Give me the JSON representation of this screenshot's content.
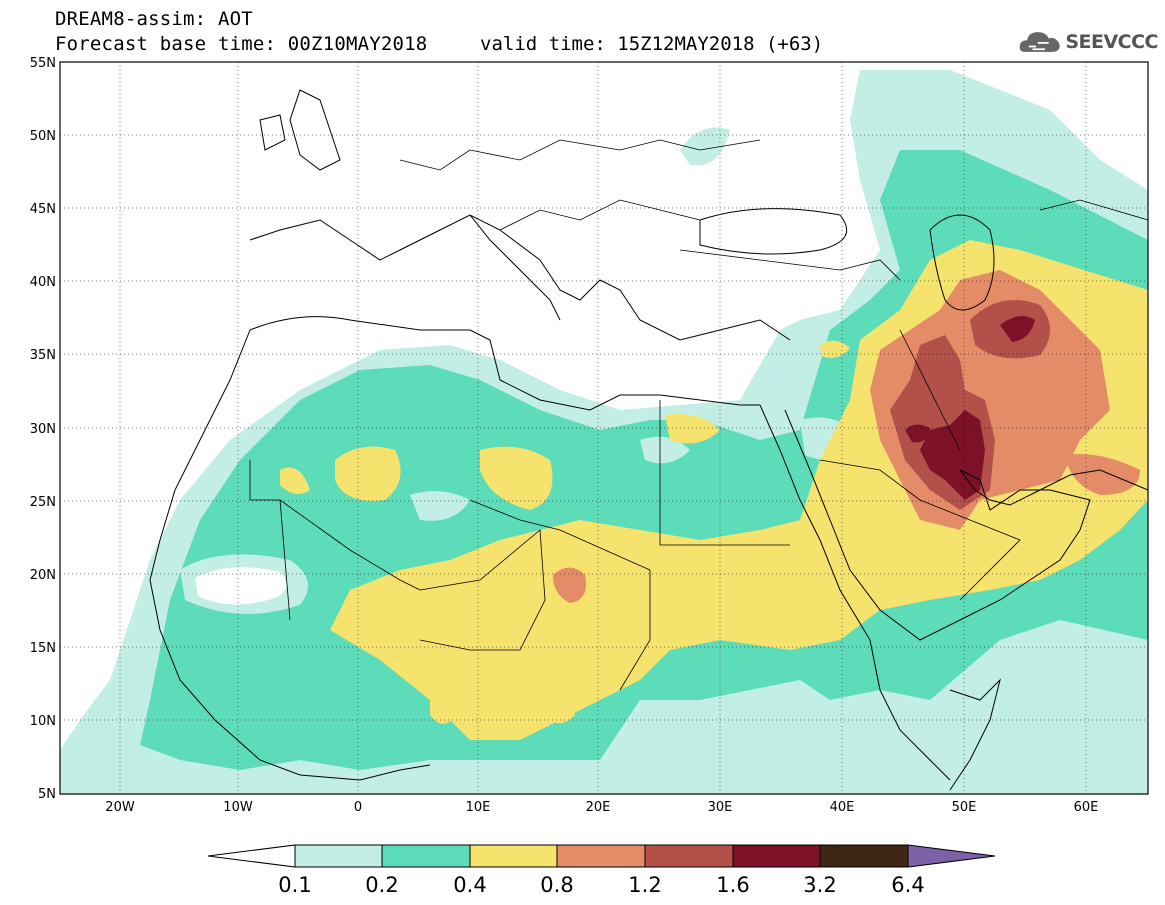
{
  "header": {
    "line1": "DREAM8-assim: AOT",
    "line2": "Forecast base time: 00Z10MAY2018",
    "valid": "valid time: 15Z12MAY2018 (+63)"
  },
  "logo": {
    "text": "SEEVCCC",
    "icon": "cloud-icon"
  },
  "map": {
    "lat_labels": [
      "55N",
      "50N",
      "45N",
      "40N",
      "35N",
      "30N",
      "25N",
      "20N",
      "15N",
      "10N",
      "5N"
    ],
    "lon_labels": [
      "20W",
      "10W",
      "0",
      "10E",
      "20E",
      "30E",
      "40E",
      "50E",
      "60E"
    ],
    "lat_range": [
      5,
      55
    ],
    "lon_range": [
      -25,
      65
    ],
    "grid": true
  },
  "colorbar": {
    "labels": [
      "0.1",
      "0.2",
      "0.4",
      "0.8",
      "1.2",
      "1.6",
      "3.2",
      "6.4"
    ],
    "colors": [
      "#ffffff",
      "#c2eee6",
      "#5ddcb9",
      "#f5e36e",
      "#e48c68",
      "#b3504a",
      "#7e1128",
      "#402614",
      "#7b62a8"
    ]
  },
  "colors": {
    "c1": "#c2eee6",
    "c2": "#5ddcb9",
    "c3": "#f5e36e",
    "c4": "#e48c68",
    "c5": "#b3504a",
    "c6": "#7e1128"
  }
}
